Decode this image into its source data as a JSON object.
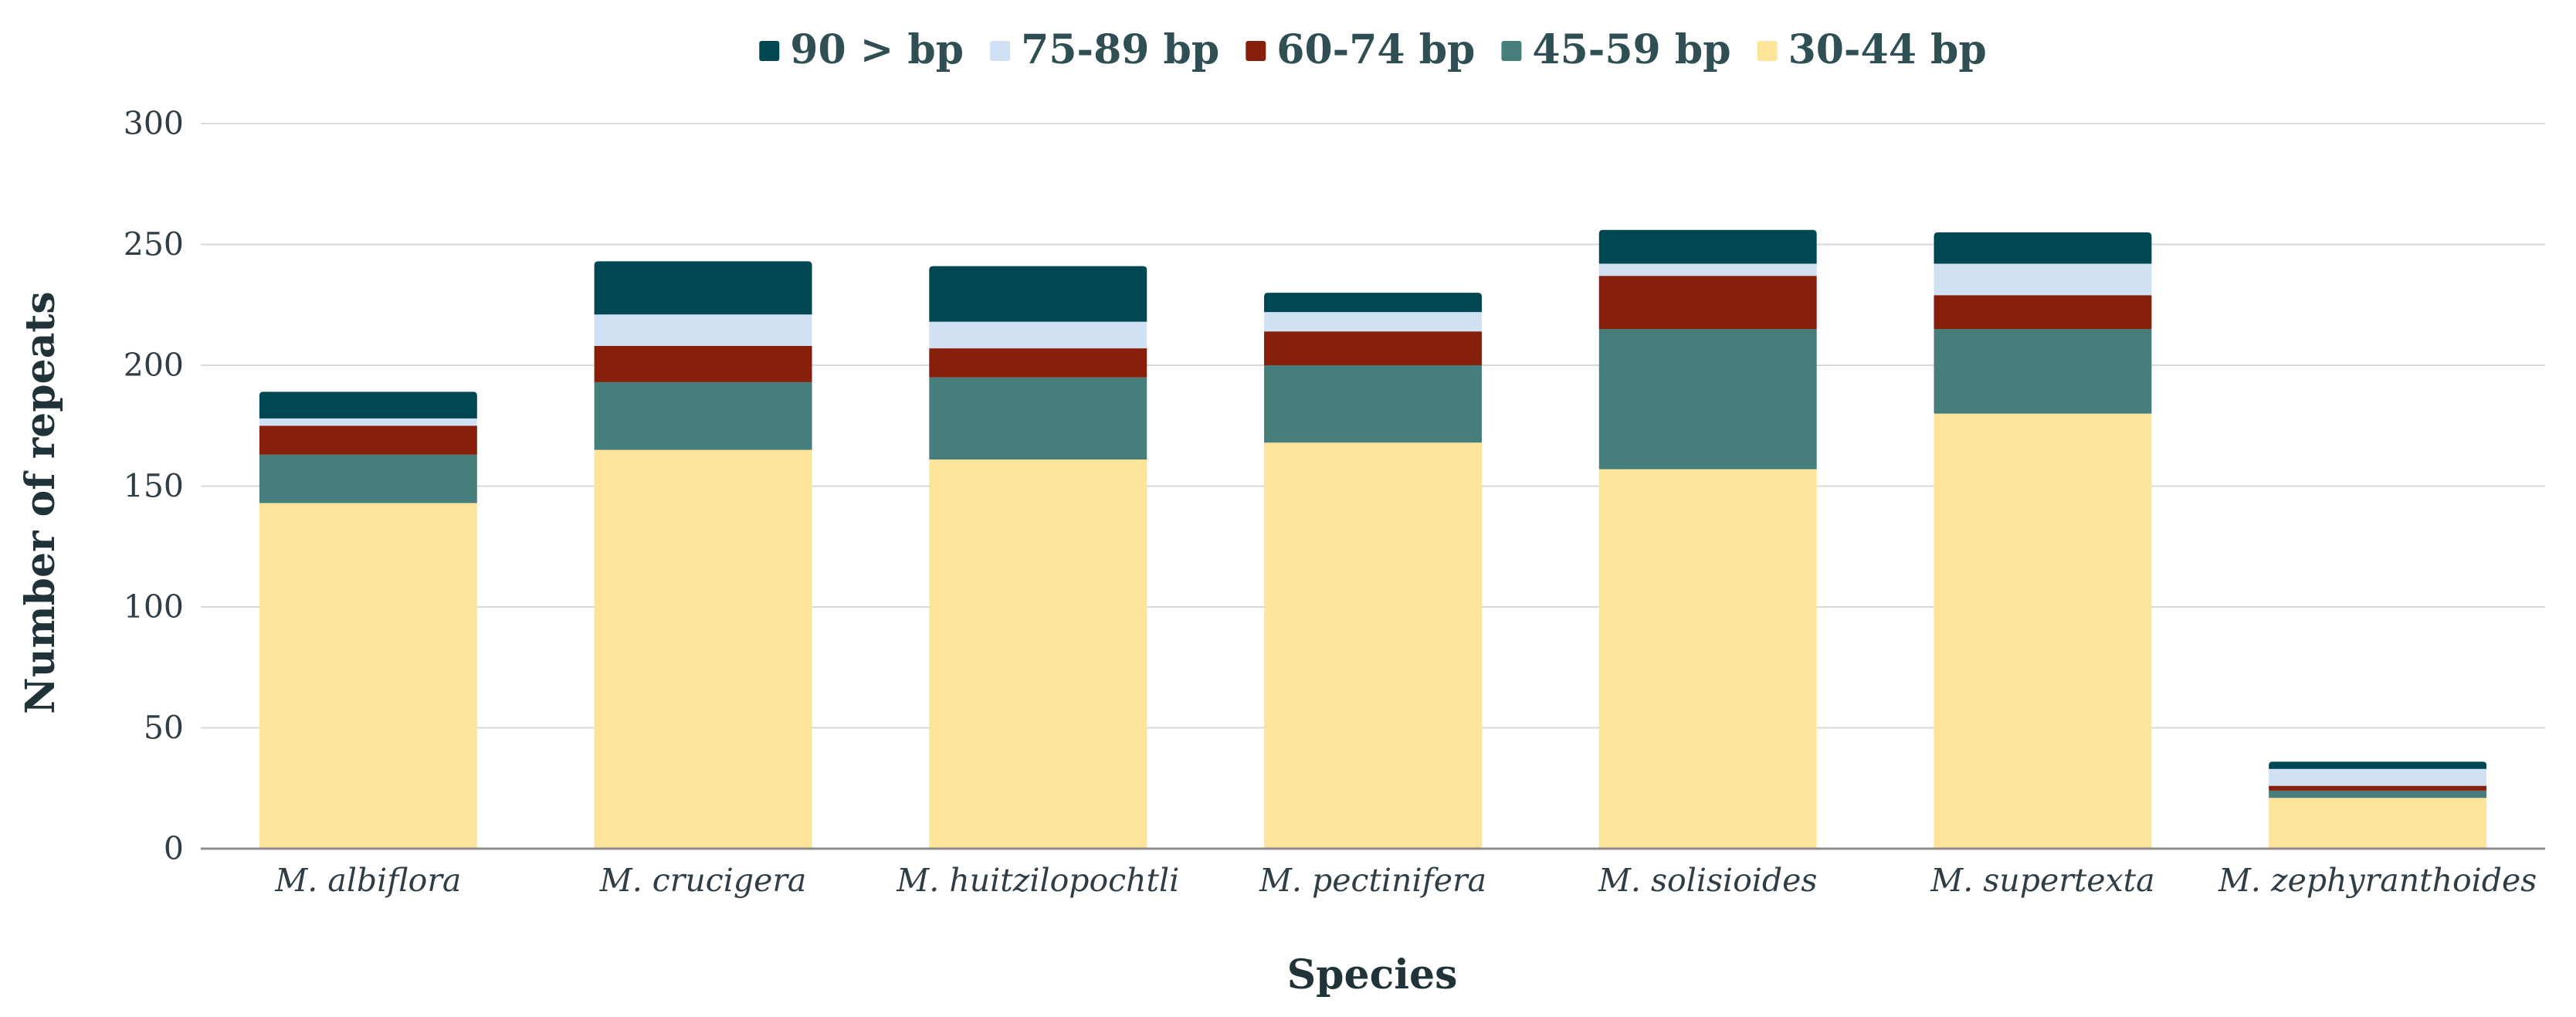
{
  "chart_data": {
    "type": "bar",
    "stacked": true,
    "title": "",
    "xlabel": "Species",
    "ylabel": "Number of repeats",
    "ylim": [
      0,
      300
    ],
    "yticks": [
      "0",
      "50",
      "100",
      "150",
      "200",
      "250",
      "300"
    ],
    "grid": true,
    "legend_position": "top-center",
    "categories": [
      "M. albiflora",
      "M. crucigera",
      "M. huitzilopochtli",
      "M. pectinifera",
      "M. solisioides",
      "M. supertexta",
      "M. zephyranthoides"
    ],
    "series": [
      {
        "name": "30-44 bp",
        "color": "#fde49a",
        "values": [
          143,
          165,
          161,
          168,
          157,
          180,
          21
        ]
      },
      {
        "name": "45-59 bp",
        "color": "#467e7b",
        "values": [
          20,
          28,
          34,
          32,
          58,
          35,
          3
        ]
      },
      {
        "name": "60-74 bp",
        "color": "#86200d",
        "values": [
          12,
          15,
          12,
          14,
          22,
          14,
          2
        ]
      },
      {
        "name": "75-89 bp",
        "color": "#cfe1f3",
        "values": [
          3,
          13,
          11,
          8,
          5,
          13,
          7
        ]
      },
      {
        "name": "90 > bp",
        "color": "#004754",
        "values": [
          11,
          22,
          23,
          8,
          14,
          13,
          3
        ]
      }
    ],
    "legend_order": [
      "90 > bp",
      "75-89 bp",
      "60-74 bp",
      "45-59 bp",
      "30-44 bp"
    ]
  }
}
